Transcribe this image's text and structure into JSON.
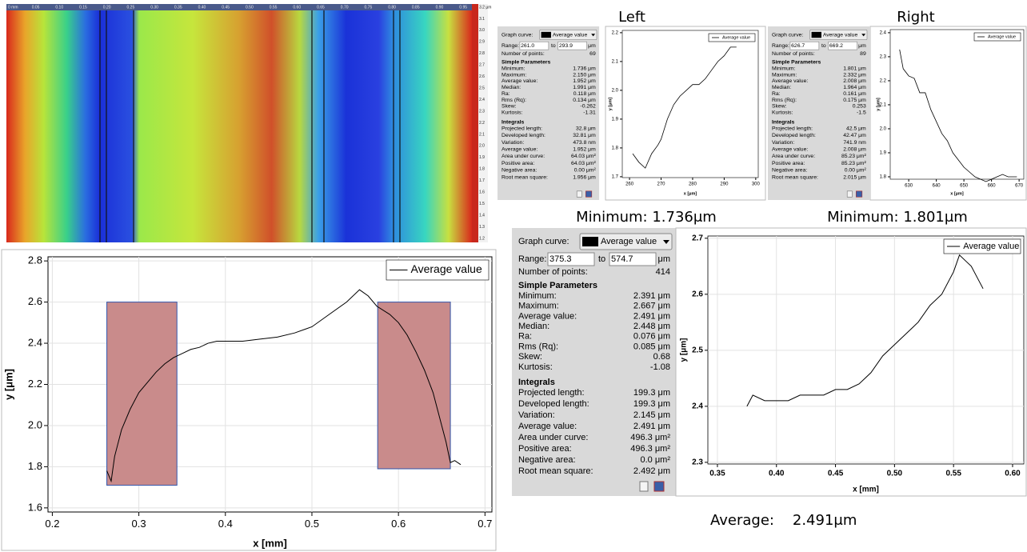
{
  "captions": {
    "left": "Left",
    "right": "Right",
    "left_min": "Minimum: 1.736μm",
    "right_min": "Minimum: 1.801μm",
    "average": "Average:    2.491μm"
  },
  "heatmap": {
    "xticks": [
      "0 mm",
      "0.05",
      "0.10",
      "0.15",
      "0.20",
      "0.25",
      "0.30",
      "0.35",
      "0.40",
      "0.45",
      "0.50",
      "0.55",
      "0.60",
      "0.65",
      "0.70",
      "0.75",
      "0.80",
      "0.85",
      "0.90",
      "0.95"
    ],
    "colorbar_ticks": [
      "3.2 µm",
      "3.1",
      "3.0",
      "2.9",
      "2.8",
      "2.7",
      "2.6",
      "2.5",
      "2.4",
      "2.3",
      "2.2",
      "2.1",
      "2.0",
      "1.9",
      "1.8",
      "1.7",
      "1.6",
      "1.5",
      "1.4",
      "1.3",
      "1.2"
    ]
  },
  "profile_chart": {
    "type": "line",
    "xlabel": "x [mm]",
    "ylabel": "y [μm]",
    "x": [
      0.263,
      0.268,
      0.272,
      0.28,
      0.29,
      0.3,
      0.31,
      0.32,
      0.33,
      0.34,
      0.35,
      0.36,
      0.37,
      0.38,
      0.39,
      0.4,
      0.42,
      0.44,
      0.46,
      0.48,
      0.5,
      0.52,
      0.54,
      0.555,
      0.565,
      0.575,
      0.59,
      0.6,
      0.61,
      0.62,
      0.63,
      0.64,
      0.65,
      0.655,
      0.66,
      0.665,
      0.672
    ],
    "series": [
      {
        "name": "Average value",
        "color": "#000000",
        "values": [
          1.78,
          1.73,
          1.85,
          1.98,
          2.08,
          2.16,
          2.21,
          2.26,
          2.3,
          2.33,
          2.35,
          2.37,
          2.38,
          2.4,
          2.41,
          2.41,
          2.41,
          2.42,
          2.43,
          2.45,
          2.48,
          2.54,
          2.6,
          2.66,
          2.63,
          2.58,
          2.54,
          2.5,
          2.44,
          2.36,
          2.27,
          2.16,
          2.0,
          1.92,
          1.82,
          1.83,
          1.81
        ]
      }
    ],
    "regions": [
      {
        "x": [
          0.263,
          0.344
        ],
        "y": [
          1.71,
          2.6
        ],
        "color": "#c98b8b"
      },
      {
        "x": [
          0.576,
          0.66
        ],
        "y": [
          1.79,
          2.6
        ],
        "color": "#c98b8b"
      }
    ],
    "xlim": [
      0.195,
      0.708
    ],
    "ylim": [
      1.58,
      2.82
    ],
    "xticks": [
      0.2,
      0.3,
      0.4,
      0.5,
      0.6,
      0.7
    ],
    "yticks": [
      1.6,
      1.8,
      {
        "value": 2,
        "label": "2.0"
      },
      2.2,
      2.4,
      2.6,
      2.8
    ],
    "grid": true,
    "legend": "upper right"
  },
  "left_panel": {
    "graph_curve_label": "Graph curve:",
    "curve": "Average value",
    "range_label": "Range:",
    "range_from": "261.0",
    "to_label": "to",
    "range_to": "293.9",
    "unit": "μm",
    "points_label": "Number of points:",
    "points": "69",
    "simple_title": "Simple Parameters",
    "simple": [
      [
        "Minimum:",
        "1.736 μm"
      ],
      [
        "Maximum:",
        "2.150 μm"
      ],
      [
        "Average value:",
        "1.952 μm"
      ],
      [
        "Median:",
        "1.991 μm"
      ],
      [
        "Ra:",
        "0.118 μm"
      ],
      [
        "Rms (Rq):",
        "0.134 μm"
      ],
      [
        "Skew:",
        "-0.262"
      ],
      [
        "Kurtosis:",
        "-1.31"
      ]
    ],
    "integrals_title": "Integrals",
    "integrals": [
      [
        "Projected length:",
        "32.8 μm"
      ],
      [
        "Developed length:",
        "32.81 μm"
      ],
      [
        "Variation:",
        "473.8 nm"
      ],
      [
        "Average value:",
        "1.952 μm"
      ],
      [
        "Area under curve:",
        "64.03 μm²"
      ],
      [
        "Positive area:",
        "64.03 μm²"
      ],
      [
        "Negative area:",
        "0.00 μm²"
      ],
      [
        "Root mean square:",
        "1.956 μm"
      ]
    ]
  },
  "left_chart": {
    "type": "line",
    "xlabel": "x [μm]",
    "ylabel": "y [μm]",
    "x": [
      261,
      263,
      265,
      267,
      269,
      270,
      272,
      274,
      276,
      278,
      280,
      282,
      284,
      286,
      288,
      290,
      292,
      293.9
    ],
    "series": [
      {
        "name": "Average value",
        "color": "#000000",
        "values": [
          1.78,
          1.75,
          1.73,
          1.78,
          1.81,
          1.83,
          1.9,
          1.95,
          1.98,
          2.0,
          2.02,
          2.02,
          2.04,
          2.07,
          2.1,
          2.12,
          2.15,
          2.15
        ]
      }
    ],
    "xlim": [
      257.7,
      300.8
    ],
    "ylim": [
      1.697,
      2.208
    ],
    "xticks": [
      260,
      270,
      280,
      290,
      300
    ],
    "yticks": [
      1.7,
      1.8,
      1.9,
      {
        "value": 2,
        "label": "2.0"
      },
      2.1,
      2.2
    ],
    "grid": false,
    "legend": "upper right"
  },
  "right_panel": {
    "graph_curve_label": "Graph curve:",
    "curve": "Average value",
    "range_label": "Range:",
    "range_from": "626.7",
    "to_label": "to",
    "range_to": "669.2",
    "unit": "μm",
    "points_label": "Number of points:",
    "points": "89",
    "simple_title": "Simple Parameters",
    "simple": [
      [
        "Minimum:",
        "1.801 μm"
      ],
      [
        "Maximum:",
        "2.332 μm"
      ],
      [
        "Average value:",
        "2.008 μm"
      ],
      [
        "Median:",
        "1.964 μm"
      ],
      [
        "Ra:",
        "0.161 μm"
      ],
      [
        "Rms (Rq):",
        "0.175 μm"
      ],
      [
        "Skew:",
        "0.253"
      ],
      [
        "Kurtosis:",
        "-1.5"
      ]
    ],
    "integrals_title": "Integrals",
    "integrals": [
      [
        "Projected length:",
        "42.5 μm"
      ],
      [
        "Developed length:",
        "42.47 μm"
      ],
      [
        "Variation:",
        "741.9 nm"
      ],
      [
        "Average value:",
        "2.008 μm"
      ],
      [
        "Area under curve:",
        "85.23 μm²"
      ],
      [
        "Positive area:",
        "85.23 μm²"
      ],
      [
        "Negative area:",
        "0.00 μm²"
      ],
      [
        "Root mean square:",
        "2.015 μm"
      ]
    ]
  },
  "right_chart": {
    "type": "line",
    "xlabel": "x [μm]",
    "ylabel": "y [μm]",
    "x": [
      626.7,
      628,
      630,
      632,
      634,
      636,
      638,
      640,
      642,
      644,
      646,
      648,
      650,
      652,
      654,
      656,
      658,
      660,
      662,
      664,
      666,
      668,
      669.2
    ],
    "series": [
      {
        "name": "Average value",
        "color": "#000000",
        "values": [
          2.33,
          2.25,
          2.22,
          2.21,
          2.15,
          2.15,
          2.08,
          2.03,
          1.98,
          1.95,
          1.9,
          1.87,
          1.84,
          1.82,
          1.8,
          1.79,
          1.78,
          1.79,
          1.8,
          1.81,
          1.8,
          1.8,
          1.8
        ]
      }
    ],
    "xlim": [
      623.3,
      671.7
    ],
    "ylim": [
      1.79,
      2.413
    ],
    "xticks": [
      630,
      640,
      650,
      660,
      670
    ],
    "yticks": [
      1.8,
      1.9,
      {
        "value": 2,
        "label": "2.0"
      },
      2.1,
      2.2,
      2.3,
      2.4
    ],
    "grid": false,
    "legend": "upper right"
  },
  "middle_panel": {
    "graph_curve_label": "Graph curve:",
    "curve": "Average value",
    "range_label": "Range:",
    "range_from": "375.3",
    "to_label": "to",
    "range_to": "574.7",
    "unit": "μm",
    "points_label": "Number of points:",
    "points": "414",
    "simple_title": "Simple Parameters",
    "simple": [
      [
        "Minimum:",
        "2.391 μm"
      ],
      [
        "Maximum:",
        "2.667 μm"
      ],
      [
        "Average value:",
        "2.491 μm"
      ],
      [
        "Median:",
        "2.448 μm"
      ],
      [
        "Ra:",
        "0.076 μm"
      ],
      [
        "Rms (Rq):",
        "0.085 μm"
      ],
      [
        "Skew:",
        "0.68"
      ],
      [
        "Kurtosis:",
        "-1.08"
      ]
    ],
    "integrals_title": "Integrals",
    "integrals": [
      [
        "Projected length:",
        "199.3 μm"
      ],
      [
        "Developed length:",
        "199.3 μm"
      ],
      [
        "Variation:",
        "2.145 μm"
      ],
      [
        "Average value:",
        "2.491 μm"
      ],
      [
        "Area under curve:",
        "496.3 μm²"
      ],
      [
        "Positive area:",
        "496.3 μm²"
      ],
      [
        "Negative area:",
        "0.0 μm²"
      ],
      [
        "Root mean square:",
        "2.492 μm"
      ]
    ]
  },
  "middle_chart": {
    "type": "line",
    "xlabel": "x [mm]",
    "ylabel": "y [μm]",
    "x": [
      0.375,
      0.38,
      0.39,
      0.4,
      0.41,
      0.42,
      0.43,
      0.44,
      0.45,
      0.46,
      0.47,
      0.48,
      0.49,
      0.5,
      0.51,
      0.52,
      0.53,
      0.54,
      0.55,
      0.555,
      0.56,
      0.565,
      0.57,
      0.575
    ],
    "series": [
      {
        "name": "Average value",
        "color": "#000000",
        "values": [
          2.4,
          2.42,
          2.41,
          2.41,
          2.41,
          2.42,
          2.42,
          2.42,
          2.43,
          2.43,
          2.44,
          2.46,
          2.49,
          2.51,
          2.53,
          2.55,
          2.58,
          2.6,
          2.64,
          2.67,
          2.66,
          2.65,
          2.63,
          2.61
        ]
      }
    ],
    "xlim": [
      0.3419,
      0.6095
    ],
    "ylim": [
      2.297,
      2.704
    ],
    "xticks": [
      0.35,
      {
        "value": 0.4,
        "label": "0.40"
      },
      0.45,
      {
        "value": 0.5,
        "label": "0.50"
      },
      0.55,
      {
        "value": 0.6,
        "label": "0.60"
      }
    ],
    "yticks": [
      2.3,
      2.4,
      2.5,
      2.6,
      2.7
    ],
    "grid": true,
    "legend": "upper right"
  }
}
